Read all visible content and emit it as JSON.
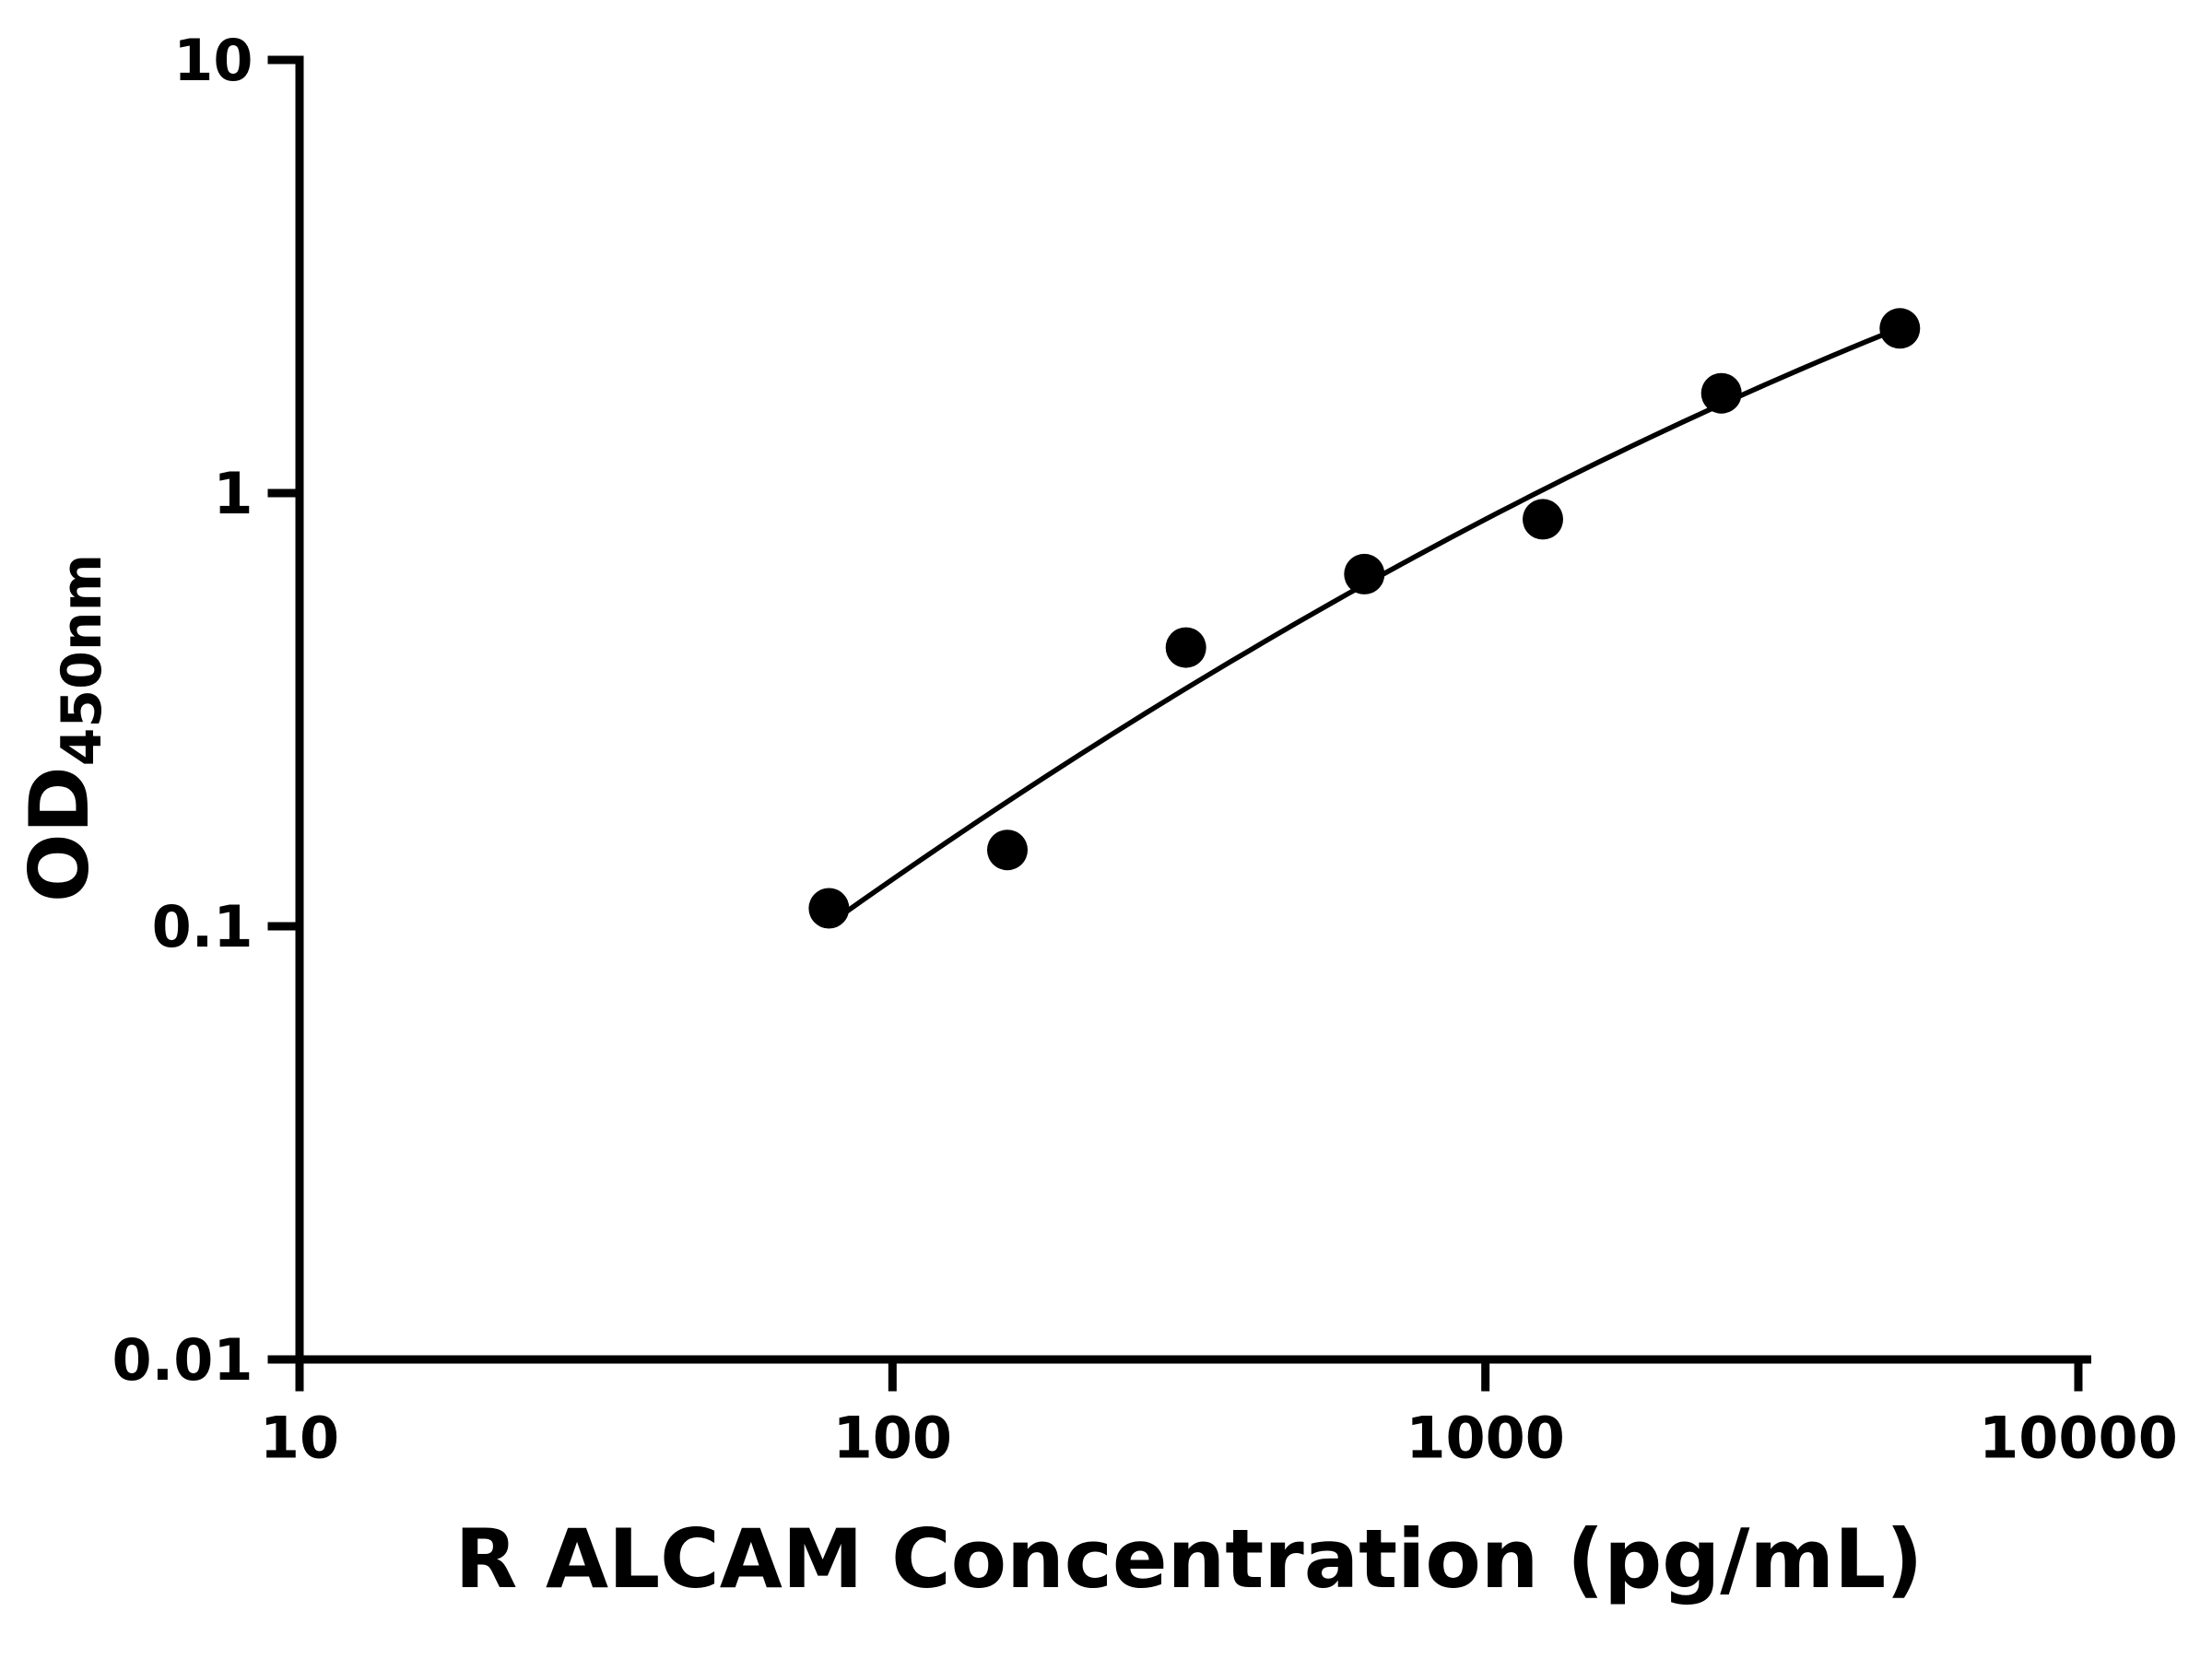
{
  "figure": {
    "background": "#ffffff",
    "foreground": "#000000"
  },
  "chart_data": {
    "type": "scatter",
    "title": "",
    "xlabel": "R ALCAM Concentration (pg/mL)",
    "ylabel_main": "OD",
    "ylabel_sub": "450nm",
    "x_scale": "log",
    "y_scale": "log",
    "xlim": [
      10,
      10000
    ],
    "ylim": [
      0.01,
      10
    ],
    "x_ticks": [
      10,
      100,
      1000,
      10000
    ],
    "x_tick_labels": [
      "10",
      "100",
      "1000",
      "10000"
    ],
    "y_ticks": [
      0.01,
      0.1,
      1,
      10
    ],
    "y_tick_labels": [
      "0.01",
      "0.1",
      "1",
      "10"
    ],
    "grid": false,
    "legend": false,
    "series": [
      {
        "name": "standard-curve",
        "marker": "circle",
        "marker_color": "#000000",
        "line_color": "#000000",
        "fit": "quadratic-loglog",
        "points": [
          {
            "x": 78.125,
            "y": 0.11
          },
          {
            "x": 156.25,
            "y": 0.15
          },
          {
            "x": 312.5,
            "y": 0.44
          },
          {
            "x": 625,
            "y": 0.65
          },
          {
            "x": 1250,
            "y": 0.87
          },
          {
            "x": 2500,
            "y": 1.7
          },
          {
            "x": 5000,
            "y": 2.4
          }
        ]
      }
    ]
  }
}
